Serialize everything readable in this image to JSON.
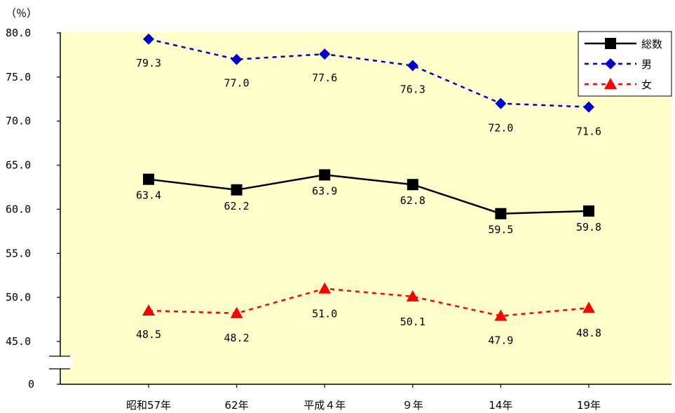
{
  "chart_data": {
    "type": "line",
    "unit_label": "（％）",
    "categories": [
      "昭和57年",
      "62年",
      "平成４年",
      "９年",
      "14年",
      "19年"
    ],
    "ylim": [
      45.0,
      80.0
    ],
    "yticks": [
      "80.0",
      "75.0",
      "70.0",
      "65.0",
      "60.0",
      "55.0",
      "50.0",
      "45.0"
    ],
    "axis_break": true,
    "axis_zero_label": "0",
    "plot_background": "#FFFFCC",
    "grid": false,
    "legend_position": "top-right",
    "series": [
      {
        "name": "総数",
        "values": [
          63.4,
          62.2,
          63.9,
          62.8,
          59.5,
          59.8
        ],
        "color": "#000000",
        "dash": "solid",
        "marker": "square"
      },
      {
        "name": "男",
        "values": [
          79.3,
          77.0,
          77.6,
          76.3,
          72.0,
          71.6
        ],
        "color": "#0000CC",
        "dash": "dashed",
        "marker": "diamond"
      },
      {
        "name": "女",
        "values": [
          48.5,
          48.2,
          51.0,
          50.1,
          47.9,
          48.8
        ],
        "color": "#FF0000",
        "dash": "dashed",
        "marker": "triangle"
      }
    ],
    "data_labels": [
      [
        "63.4",
        "62.2",
        "63.9",
        "62.8",
        "59.5",
        "59.8"
      ],
      [
        "79.3",
        "77.0",
        "77.6",
        "76.3",
        "72.0",
        "71.6"
      ],
      [
        "48.5",
        "48.2",
        "51.0",
        "50.1",
        "47.9",
        "48.8"
      ]
    ]
  }
}
